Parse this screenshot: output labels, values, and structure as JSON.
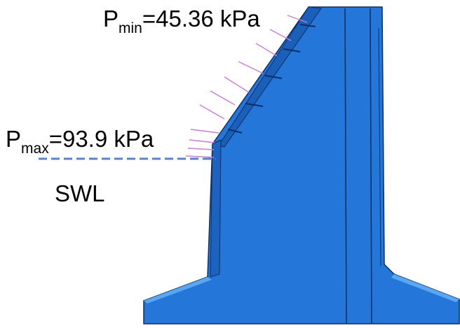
{
  "labels": {
    "p_min": {
      "symbol": "P",
      "subscript": "min",
      "text": "=45.36 kPa"
    },
    "p_max": {
      "symbol": "P",
      "subscript": "max",
      "text": "=93.9 kPa"
    },
    "swl": "SWL"
  }
}
